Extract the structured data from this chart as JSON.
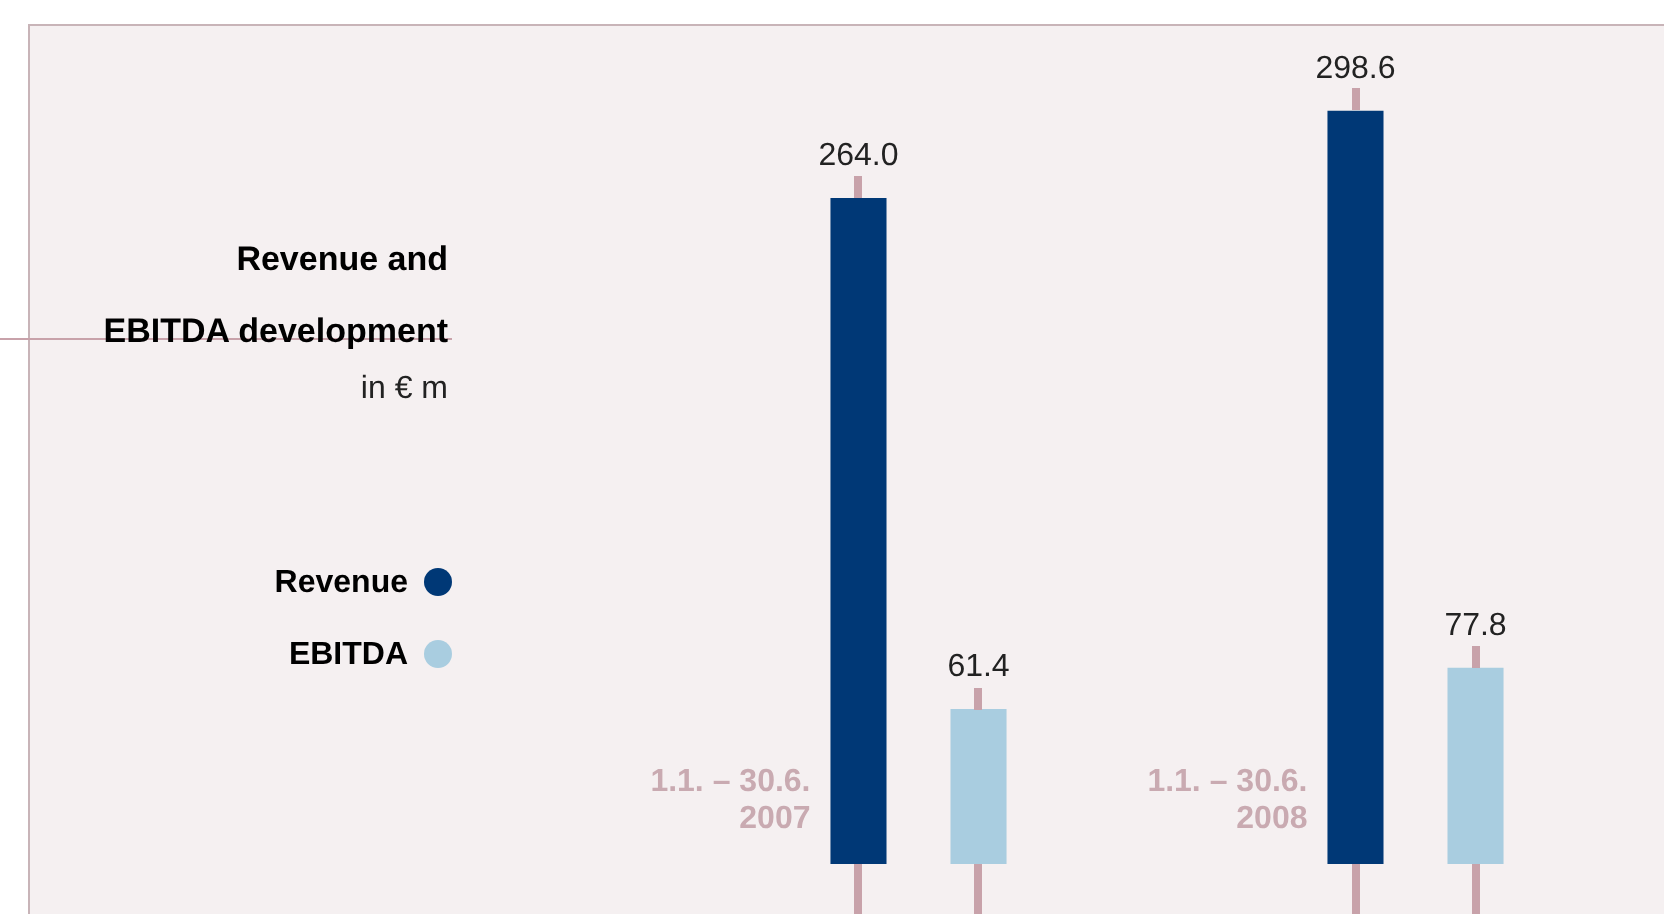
{
  "chart_data": {
    "type": "bar",
    "title": "Revenue and\nEBITDA development",
    "subtitle": "in € m",
    "categories": [
      "1.1. – 30.6. 2007",
      "1.1. – 30.6. 2008"
    ],
    "series": [
      {
        "name": "Revenue",
        "color": "#003876",
        "values": [
          264.0,
          298.6
        ],
        "value_labels": [
          "264.0",
          "298.6"
        ]
      },
      {
        "name": "EBITDA",
        "color": "#a9cde0",
        "values": [
          61.4,
          77.8
        ],
        "value_labels": [
          "61.4",
          "77.8"
        ]
      }
    ],
    "legend": "left"
  }
}
